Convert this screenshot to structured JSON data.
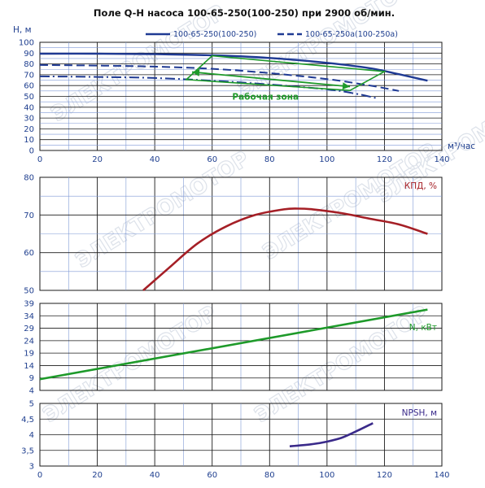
{
  "title": "Поле Q-H насоса 100-65-250(100-250) при 2900 об/мин.",
  "colors": {
    "blue": "#1f3a93",
    "green": "#1e9a2a",
    "red": "#a51f26",
    "purple": "#3a2a8a",
    "grid_major": "#1a1a1a",
    "grid_minor": "#7f99d6",
    "watermark": "#dde2ea"
  },
  "watermark_text": "ЭЛЕКТРОМОТОР",
  "chart_data": [
    {
      "id": "qh",
      "type": "line",
      "xlabel": "м³/час",
      "ylabel": "Н, м",
      "xlim": [
        0,
        140
      ],
      "ylim": [
        0,
        100
      ],
      "xticks": [
        0,
        20,
        40,
        60,
        80,
        100,
        120,
        140
      ],
      "yticks": [
        0,
        10,
        20,
        30,
        40,
        50,
        60,
        70,
        80,
        90,
        100
      ],
      "grid": true,
      "legend_position": "top",
      "series": [
        {
          "name": "100-65-250(100-250)",
          "style": "solid",
          "x": [
            0,
            20,
            40,
            60,
            80,
            100,
            115,
            125,
            135
          ],
          "y": [
            89.5,
            89.5,
            89,
            88,
            85.5,
            81,
            76,
            70.5,
            64.5
          ]
        },
        {
          "name": "100-65-250а(100-250а)",
          "style": "dashed",
          "x": [
            0,
            20,
            40,
            60,
            80,
            100,
            115,
            125
          ],
          "y": [
            79,
            78.5,
            77.5,
            75.5,
            71.5,
            66,
            60,
            55
          ]
        },
        {
          "name": "",
          "style": "dashdot",
          "x": [
            0,
            20,
            40,
            60,
            80,
            100,
            110,
            117
          ],
          "y": [
            68.5,
            68,
            67,
            64.5,
            61,
            56.5,
            52.5,
            48.5
          ]
        }
      ],
      "annotations": [
        {
          "text": "Рабочая зона",
          "x": 67,
          "y": 47
        }
      ],
      "working_zone": [
        [
          51,
          65.5
        ],
        [
          60,
          87.5
        ],
        [
          120,
          73
        ],
        [
          108,
          55.5
        ]
      ],
      "working_arrow": {
        "from": [
          53,
          72.5
        ],
        "to": [
          108,
          59
        ]
      }
    },
    {
      "id": "eff",
      "type": "line",
      "xlim": [
        0,
        140
      ],
      "ylim": [
        50,
        80
      ],
      "yticks": [
        50,
        60,
        70,
        80
      ],
      "grid": true,
      "series": [
        {
          "name": "КПД, %",
          "x": [
            36,
            45,
            55,
            65,
            75,
            85,
            90,
            95,
            105,
            115,
            125,
            135
          ],
          "y": [
            50,
            56,
            62.5,
            67,
            70,
            71.5,
            71.7,
            71.5,
            70.5,
            69,
            67.5,
            65
          ]
        }
      ]
    },
    {
      "id": "power",
      "type": "line",
      "xlim": [
        0,
        140
      ],
      "ylim": [
        4,
        39
      ],
      "yticks": [
        4,
        9,
        14,
        19,
        24,
        29,
        34,
        39
      ],
      "grid": true,
      "series": [
        {
          "name": "N, кВт",
          "x": [
            0,
            135
          ],
          "y": [
            8.5,
            36.5
          ]
        }
      ]
    },
    {
      "id": "npsh",
      "type": "line",
      "xlabel": "",
      "xlim": [
        0,
        140
      ],
      "ylim": [
        3,
        5
      ],
      "xticks": [
        0,
        20,
        40,
        60,
        80,
        100,
        120,
        140
      ],
      "yticks": [
        3,
        3.5,
        4,
        4.5,
        5
      ],
      "ytick_labels": [
        "3",
        "3,5",
        "4",
        "4,5",
        "5"
      ],
      "grid": true,
      "series": [
        {
          "name": "NPSH, м",
          "x": [
            87,
            95,
            100,
            105,
            110,
            116
          ],
          "y": [
            3.63,
            3.7,
            3.78,
            3.9,
            4.1,
            4.37
          ]
        }
      ]
    }
  ]
}
